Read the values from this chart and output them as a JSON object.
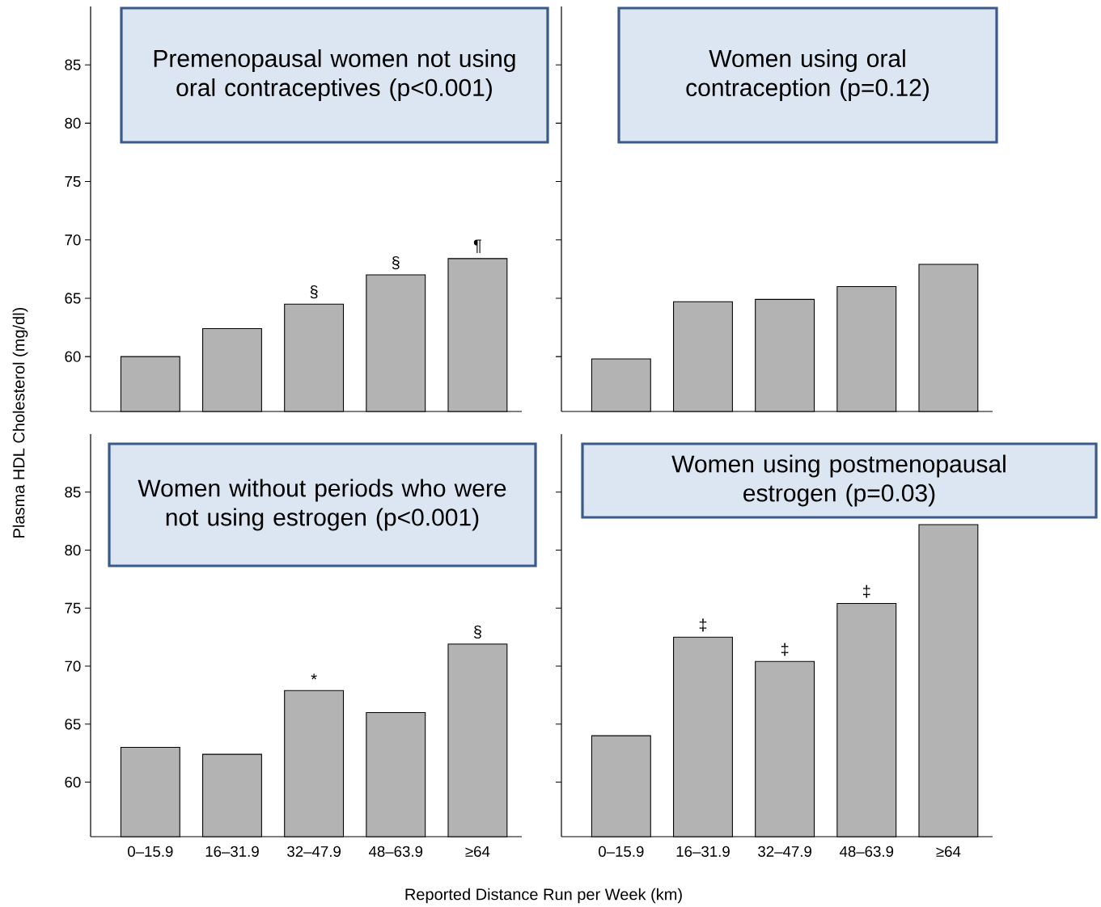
{
  "chart_data": [
    {
      "type": "bar",
      "title": "Premenopausal women not using oral contraceptives (p<0.001)",
      "ylabel": "Plasma HDL Cholesterol (mg/dl)",
      "categories": [
        "0–15.9",
        "16–31.9",
        "32–47.9",
        "48–63.9",
        "≥64"
      ],
      "values": [
        60.0,
        62.4,
        64.5,
        67.0,
        68.4
      ],
      "color": "#b3b3b3",
      "ylim": [
        55.3,
        90
      ],
      "yticks": [
        60,
        65,
        70,
        75,
        80,
        85
      ],
      "tick_labels": "y",
      "annotations": [
        {
          "text": "§",
          "x": "32–47.9",
          "y": 64.5
        },
        {
          "text": "§",
          "x": "48–63.9",
          "y": 67.0
        },
        {
          "text": "¶",
          "x": "≥64",
          "y": 68.4
        }
      ]
    },
    {
      "type": "bar",
      "title": "Women using oral contraception (p=0.12)",
      "categories": [
        "0–15.9",
        "16–31.9",
        "32–47.9",
        "48–63.9",
        "≥64"
      ],
      "values": [
        59.8,
        64.7,
        64.9,
        66.0,
        67.9
      ],
      "color": "#b3b3b3",
      "ylim": [
        55.3,
        90
      ],
      "yticks": [
        60,
        65,
        70,
        75,
        80,
        85
      ],
      "tick_labels": false
    },
    {
      "type": "bar",
      "title": "Women without periods who were not using estrogen (p<0.001)",
      "xlabel": "Reported Distance Run per Week (km)",
      "categories": [
        "0–15.9",
        "16–31.9",
        "32–47.9",
        "48–63.9",
        "≥64"
      ],
      "values": [
        63.0,
        62.4,
        67.9,
        66.0,
        71.9
      ],
      "color": "#b3b3b3",
      "ylim": [
        55.3,
        90
      ],
      "yticks": [
        60,
        65,
        70,
        75,
        80,
        85
      ],
      "annotations": [
        {
          "text": "*",
          "x": "32–47.9",
          "y": 67.9
        },
        {
          "text": "§",
          "x": "≥64",
          "y": 71.9
        }
      ]
    },
    {
      "type": "bar",
      "title": "Women using postmenopausal estrogen (p=0.03)",
      "categories": [
        "0–15.9",
        "16–31.9",
        "32–47.9",
        "48–63.9",
        "≥64"
      ],
      "values": [
        64.0,
        72.5,
        70.4,
        75.4,
        82.2
      ],
      "color": "#b3b3b3",
      "ylim": [
        55.3,
        90
      ],
      "yticks": [
        60,
        65,
        70,
        75,
        80,
        85
      ],
      "tick_labels": "x",
      "annotations": [
        {
          "text": "‡",
          "x": "16–31.9",
          "y": 72.5
        },
        {
          "text": "‡",
          "x": "32–47.9",
          "y": 70.4
        },
        {
          "text": "‡",
          "x": "48–63.9",
          "y": 75.4
        }
      ]
    }
  ]
}
